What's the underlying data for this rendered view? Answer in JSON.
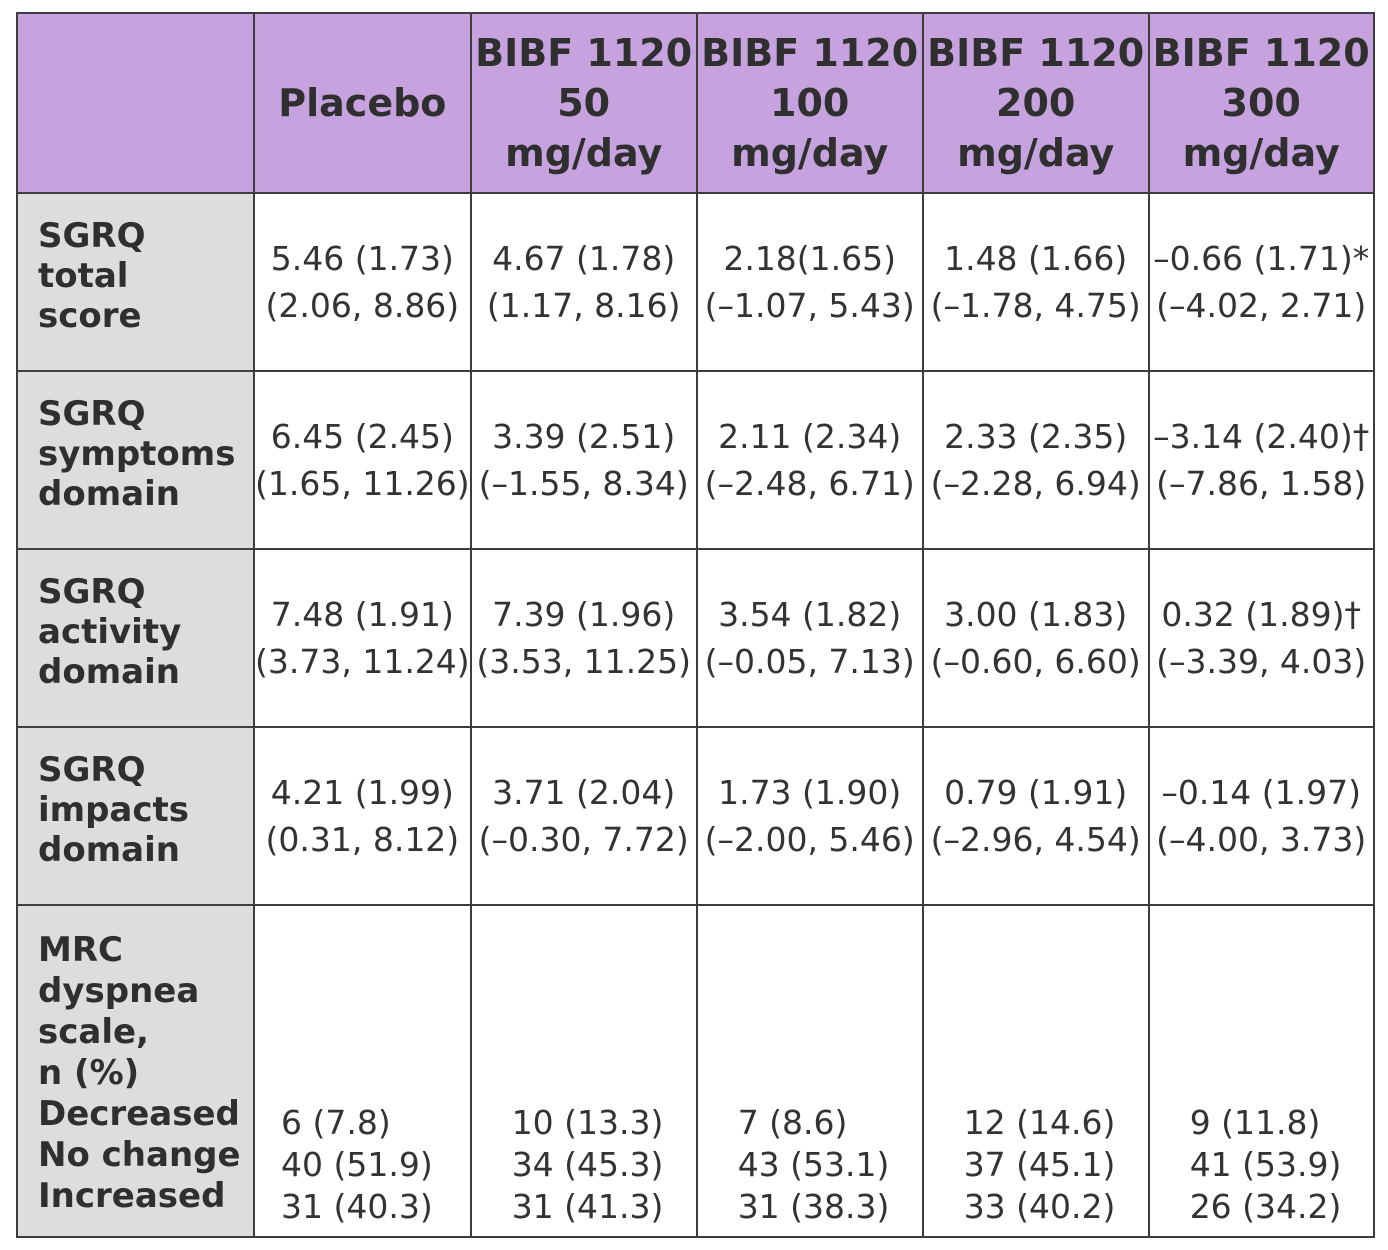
{
  "header": {
    "corner": "",
    "columns": [
      [
        "Placebo"
      ],
      [
        "BIBF 1120",
        "50",
        "mg/day"
      ],
      [
        "BIBF 1120",
        "100",
        "mg/day"
      ],
      [
        "BIBF 1120",
        "200",
        "mg/day"
      ],
      [
        "BIBF 1120",
        "300",
        "mg/day"
      ]
    ]
  },
  "rows": [
    {
      "label": [
        "SGRQ",
        "total",
        "score"
      ],
      "cells": [
        [
          "5.46 (1.73)",
          "(2.06, 8.86)"
        ],
        [
          "4.67 (1.78)",
          "(1.17, 8.16)"
        ],
        [
          "2.18(1.65)",
          "(–1.07, 5.43)"
        ],
        [
          "1.48 (1.66)",
          "(–1.78, 4.75)"
        ],
        [
          "–0.66 (1.71)*",
          "(–4.02, 2.71)"
        ]
      ]
    },
    {
      "label": [
        "SGRQ",
        "symptoms",
        "domain"
      ],
      "cells": [
        [
          "6.45 (2.45)",
          "(1.65, 11.26)"
        ],
        [
          "3.39 (2.51)",
          "(–1.55, 8.34)"
        ],
        [
          "2.11 (2.34)",
          "(–2.48, 6.71)"
        ],
        [
          "2.33 (2.35)",
          "(–2.28, 6.94)"
        ],
        [
          "–3.14 (2.40)†",
          "(–7.86, 1.58)"
        ]
      ]
    },
    {
      "label": [
        "SGRQ",
        "activity",
        "domain"
      ],
      "cells": [
        [
          "7.48 (1.91)",
          "(3.73, 11.24)"
        ],
        [
          "7.39 (1.96)",
          "(3.53, 11.25)"
        ],
        [
          "3.54 (1.82)",
          "(–0.05, 7.13)"
        ],
        [
          "3.00 (1.83)",
          "(–0.60, 6.60)"
        ],
        [
          "0.32 (1.89)†",
          "(–3.39, 4.03)"
        ]
      ]
    },
    {
      "label": [
        "SGRQ",
        "impacts",
        "domain"
      ],
      "cells": [
        [
          "4.21 (1.99)",
          "(0.31, 8.12)"
        ],
        [
          "3.71 (2.04)",
          "(–0.30, 7.72)"
        ],
        [
          "1.73 (1.90)",
          "(–2.00, 5.46)"
        ],
        [
          "0.79 (1.91)",
          "(–2.96, 4.54)"
        ],
        [
          "–0.14 (1.97)",
          "(–4.00, 3.73)"
        ]
      ]
    }
  ],
  "mrc": {
    "label": [
      "MRC",
      "dyspnea",
      "scale,",
      "n (%)",
      "Decreased",
      "No change",
      "Increased"
    ],
    "cells": [
      [
        "6 (7.8)",
        "40 (51.9)",
        "31 (40.3)"
      ],
      [
        "10 (13.3)",
        "34 (45.3)",
        "31 (41.3)"
      ],
      [
        "7 (8.6)",
        "43 (53.1)",
        "31 (38.3)"
      ],
      [
        "12 (14.6)",
        "37 (45.1)",
        "33 (40.2)"
      ],
      [
        "9 (11.8)",
        "41 (53.9)",
        "26 (34.2)"
      ]
    ]
  }
}
